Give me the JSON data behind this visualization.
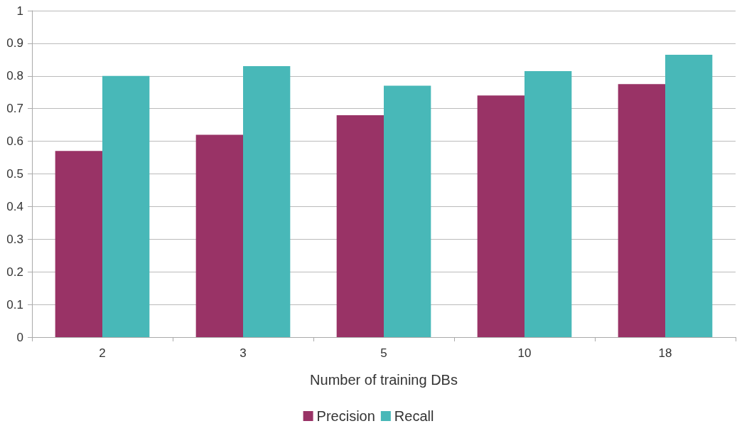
{
  "chart_data": {
    "type": "bar",
    "xlabel": "Number of training DBs",
    "categories": [
      "2",
      "3",
      "5",
      "10",
      "18"
    ],
    "series": [
      {
        "name": "Precision",
        "color": "#993366",
        "values": [
          0.57,
          0.62,
          0.68,
          0.74,
          0.775
        ]
      },
      {
        "name": "Recall",
        "color": "#48b8b8",
        "values": [
          0.8,
          0.83,
          0.77,
          0.815,
          0.865
        ]
      }
    ],
    "ylim": [
      0,
      1
    ],
    "yticks": [
      0,
      0.1,
      0.2,
      0.3,
      0.4,
      0.5,
      0.6,
      0.7,
      0.8,
      0.9,
      1
    ],
    "grid": "y",
    "legend": "bottom"
  }
}
